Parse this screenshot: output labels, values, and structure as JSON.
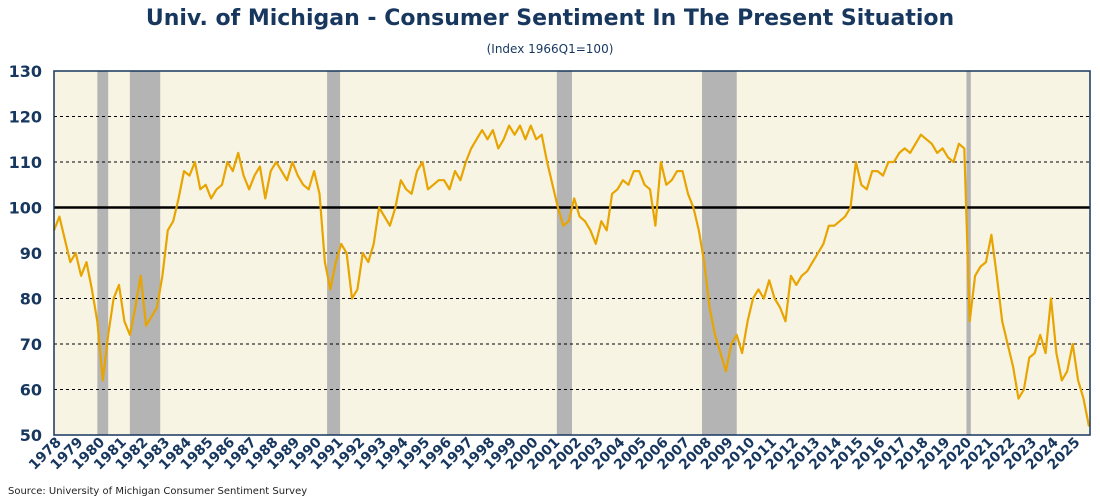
{
  "chart_data": {
    "type": "line",
    "title": "Univ. of Michigan - Consumer Sentiment In The Present Situation",
    "subtitle": "(Index 1966Q1=100)",
    "source": "Source: University of Michigan Consumer Sentiment Survey",
    "xlabel": "",
    "ylabel": "",
    "ylim": [
      50,
      130
    ],
    "yticks": [
      "50",
      "60",
      "70",
      "80",
      "90",
      "100",
      "110",
      "120",
      "130"
    ],
    "xticks": [
      "1978",
      "1979",
      "1980",
      "1981",
      "1982",
      "1983",
      "1984",
      "1985",
      "1986",
      "1987",
      "1988",
      "1989",
      "1990",
      "1991",
      "1992",
      "1993",
      "1994",
      "1995",
      "1996",
      "1997",
      "1998",
      "1999",
      "2000",
      "2001",
      "2002",
      "2003",
      "2004",
      "2005",
      "2006",
      "2007",
      "2008",
      "2009",
      "2010",
      "2011",
      "2012",
      "2013",
      "2014",
      "2015",
      "2016",
      "2017",
      "2018",
      "2019",
      "2020",
      "2021",
      "2022",
      "2023",
      "2024",
      "2025"
    ],
    "xlim": [
      1978,
      2025.8
    ],
    "reference_line": 100,
    "grid": "horizontal dashed",
    "recessions": [
      [
        1980.0,
        1980.5
      ],
      [
        1981.5,
        1982.9
      ],
      [
        1990.6,
        1991.2
      ],
      [
        2001.2,
        2001.9
      ],
      [
        2007.9,
        2009.5
      ],
      [
        2020.1,
        2020.3
      ]
    ],
    "series": [
      {
        "name": "Present Situation",
        "color": "#e8a400",
        "start": 1978,
        "step": 0.25,
        "values": [
          95,
          98,
          93,
          88,
          90,
          85,
          88,
          82,
          75,
          62,
          72,
          80,
          83,
          75,
          72,
          78,
          85,
          74,
          76,
          78,
          85,
          95,
          97,
          102,
          108,
          107,
          110,
          104,
          105,
          102,
          104,
          105,
          110,
          108,
          112,
          107,
          104,
          107,
          109,
          102,
          108,
          110,
          108,
          106,
          110,
          107,
          105,
          104,
          108,
          103,
          88,
          82,
          88,
          92,
          90,
          80,
          82,
          90,
          88,
          92,
          100,
          98,
          96,
          100,
          106,
          104,
          103,
          108,
          110,
          104,
          105,
          106,
          106,
          104,
          108,
          106,
          110,
          113,
          115,
          117,
          115,
          117,
          113,
          115,
          118,
          116,
          118,
          115,
          118,
          115,
          116,
          110,
          105,
          100,
          96,
          97,
          102,
          98,
          97,
          95,
          92,
          97,
          95,
          103,
          104,
          106,
          105,
          108,
          108,
          105,
          104,
          96,
          110,
          105,
          106,
          108,
          108,
          103,
          100,
          95,
          88,
          78,
          72,
          68,
          64,
          70,
          72,
          68,
          75,
          80,
          82,
          80,
          84,
          80,
          78,
          75,
          85,
          83,
          85,
          86,
          88,
          90,
          92,
          96,
          96,
          97,
          98,
          100,
          110,
          105,
          104,
          108,
          108,
          107,
          110,
          110,
          112,
          113,
          112,
          114,
          116,
          115,
          114,
          112,
          113,
          111,
          110,
          114,
          113,
          75,
          85,
          87,
          88,
          94,
          85,
          75,
          70,
          65,
          58,
          60,
          67,
          68,
          72,
          68,
          80,
          68,
          62,
          64,
          70,
          62,
          58,
          52
        ]
      }
    ]
  }
}
